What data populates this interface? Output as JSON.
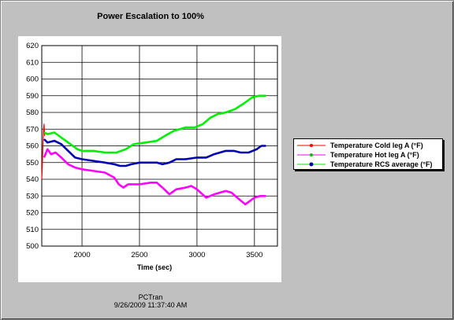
{
  "footer": {
    "source": "PCTran",
    "timestamp": "9/26/2009 11:37:40 AM"
  },
  "chart_data": {
    "type": "line",
    "title": "Power Escalation to 100%",
    "xlabel": "Time (sec)",
    "ylabel": "",
    "xlim": [
      1650,
      3700
    ],
    "ylim": [
      500,
      620
    ],
    "xticks": [
      2000,
      2500,
      3000,
      3500
    ],
    "yticks": [
      500,
      510,
      520,
      530,
      540,
      550,
      560,
      570,
      580,
      590,
      600,
      610,
      620
    ],
    "grid": true,
    "legend_position": "right",
    "series": [
      {
        "name": "Temperature Cold leg A (°F)",
        "color": "#ff0000",
        "points": [
          [
            1650,
            540
          ],
          [
            1655,
            548
          ],
          [
            1660,
            562
          ],
          [
            1665,
            570
          ],
          [
            1670,
            573
          ],
          [
            1675,
            566
          ]
        ]
      },
      {
        "name": "Temperature Hot leg A (°F)",
        "color": "#ff00ff",
        "points": [
          [
            1670,
            553
          ],
          [
            1700,
            558
          ],
          [
            1730,
            555
          ],
          [
            1770,
            556
          ],
          [
            1820,
            553
          ],
          [
            1880,
            549
          ],
          [
            1940,
            547
          ],
          [
            2000,
            546
          ],
          [
            2100,
            545
          ],
          [
            2200,
            544
          ],
          [
            2280,
            541
          ],
          [
            2320,
            537
          ],
          [
            2360,
            535
          ],
          [
            2400,
            537
          ],
          [
            2500,
            537
          ],
          [
            2600,
            538
          ],
          [
            2650,
            538
          ],
          [
            2700,
            535
          ],
          [
            2760,
            531
          ],
          [
            2820,
            534
          ],
          [
            2900,
            535
          ],
          [
            2950,
            536
          ],
          [
            3000,
            534
          ],
          [
            3080,
            529
          ],
          [
            3150,
            531
          ],
          [
            3250,
            533
          ],
          [
            3300,
            532
          ],
          [
            3350,
            529
          ],
          [
            3420,
            525
          ],
          [
            3500,
            529
          ],
          [
            3550,
            530
          ],
          [
            3600,
            530
          ]
        ]
      },
      {
        "name": "Temperature RCS average (°F)",
        "color": "#00ee00",
        "points": [
          [
            1670,
            568
          ],
          [
            1700,
            567
          ],
          [
            1760,
            568
          ],
          [
            1820,
            565
          ],
          [
            1900,
            561
          ],
          [
            1960,
            558
          ],
          [
            2000,
            557
          ],
          [
            2100,
            557
          ],
          [
            2200,
            556
          ],
          [
            2300,
            556
          ],
          [
            2380,
            558
          ],
          [
            2450,
            561
          ],
          [
            2550,
            562
          ],
          [
            2650,
            563
          ],
          [
            2720,
            566
          ],
          [
            2800,
            569
          ],
          [
            2900,
            571
          ],
          [
            2980,
            571
          ],
          [
            3050,
            573
          ],
          [
            3120,
            577
          ],
          [
            3180,
            579
          ],
          [
            3250,
            580
          ],
          [
            3330,
            582
          ],
          [
            3400,
            585
          ],
          [
            3480,
            589
          ],
          [
            3540,
            590
          ],
          [
            3600,
            590
          ]
        ]
      },
      {
        "name": "",
        "color": "#0000b0",
        "points": [
          [
            1670,
            564
          ],
          [
            1700,
            562
          ],
          [
            1760,
            563
          ],
          [
            1820,
            561
          ],
          [
            1880,
            557
          ],
          [
            1940,
            553
          ],
          [
            2000,
            552
          ],
          [
            2100,
            551
          ],
          [
            2200,
            550
          ],
          [
            2280,
            549
          ],
          [
            2330,
            548
          ],
          [
            2380,
            548
          ],
          [
            2430,
            549
          ],
          [
            2500,
            550
          ],
          [
            2600,
            550
          ],
          [
            2650,
            550
          ],
          [
            2700,
            549
          ],
          [
            2760,
            550
          ],
          [
            2820,
            552
          ],
          [
            2900,
            552
          ],
          [
            3000,
            553
          ],
          [
            3080,
            553
          ],
          [
            3150,
            555
          ],
          [
            3250,
            557
          ],
          [
            3320,
            557
          ],
          [
            3380,
            556
          ],
          [
            3450,
            556
          ],
          [
            3520,
            558
          ],
          [
            3560,
            560
          ],
          [
            3600,
            560
          ]
        ]
      }
    ],
    "legend_markers": [
      {
        "color": "#ff0000",
        "marker": "#ff0000"
      },
      {
        "color": "#ff00ff",
        "marker": "#00c000"
      },
      {
        "color": "#00ee00",
        "marker": "#0000b0"
      }
    ]
  }
}
